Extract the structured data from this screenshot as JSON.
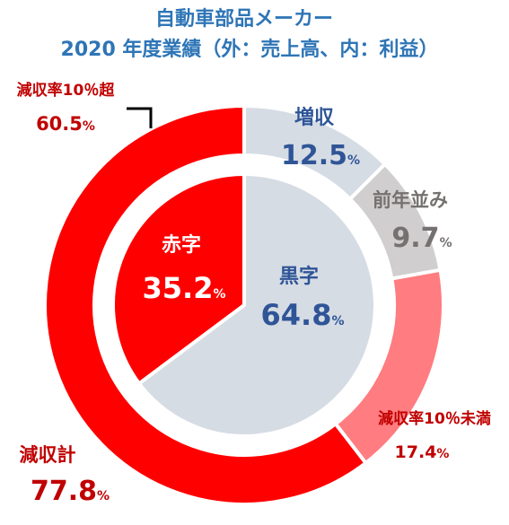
{
  "title_line1": "自動車部品メーカー",
  "title_line2": "2020 年度業績（外：売上高、内：利益）",
  "chart_data": [
    {
      "type": "pie",
      "ring": "outer",
      "slices": [
        {
          "label": "増収",
          "value": 12.5,
          "color": "#d6dce4",
          "label_color": "#2f5597"
        },
        {
          "label": "前年並み",
          "value": 9.7,
          "color": "#d0cece",
          "label_color": "#767171"
        },
        {
          "label": "減収率10％未満",
          "value": 17.4,
          "color": "#ff7c80",
          "label_color": "#c00000"
        },
        {
          "label": "減収率10％超",
          "value": 60.5,
          "color": "#ff0000",
          "label_color": "#c00000"
        }
      ],
      "group_label": {
        "label": "減収計",
        "value": 77.8,
        "label_color": "#c00000"
      }
    },
    {
      "type": "pie",
      "ring": "inner",
      "slices": [
        {
          "label": "黒字",
          "value": 64.8,
          "color": "#d6dce4",
          "label_color": "#2f5597"
        },
        {
          "label": "赤字",
          "value": 35.2,
          "color": "#ff0000",
          "label_color": "#ffffff"
        }
      ]
    }
  ]
}
